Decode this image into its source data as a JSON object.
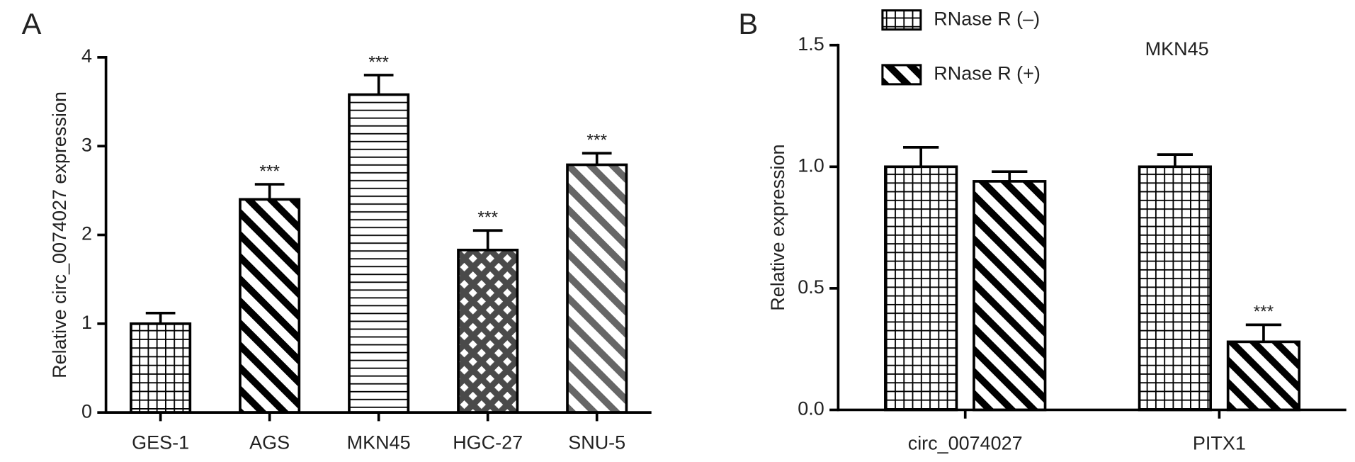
{
  "chart_data": [
    {
      "type": "bar",
      "panel": "A",
      "y_label": "Relative circ_0074027 expression",
      "categories": [
        "GES-1",
        "AGS",
        "MKN45",
        "HGC-27",
        "SNU-5"
      ],
      "values": [
        1.0,
        2.4,
        3.58,
        1.83,
        2.79
      ],
      "errors": [
        0.12,
        0.17,
        0.22,
        0.22,
        0.13
      ],
      "significance": [
        null,
        "***",
        "***",
        "***",
        "***"
      ],
      "colors": [
        "#000000",
        "#000000",
        "#000000",
        "#4a4a4a",
        "#666666"
      ],
      "hatches": [
        "grid",
        "back-diagonal",
        "horizontal",
        "cross",
        "back-diagonal"
      ],
      "ylim": [
        0,
        4
      ],
      "yticks": [
        0,
        1,
        2,
        3,
        4
      ]
    },
    {
      "type": "grouped_bar",
      "panel": "B",
      "title": "MKN45",
      "y_label": "Relative expression",
      "categories": [
        "circ_0074027",
        "PITX1"
      ],
      "series": [
        {
          "name": "RNase R (–)",
          "color": "#000000",
          "hatch": "grid",
          "values": [
            1.0,
            1.0
          ],
          "errors": [
            0.08,
            0.05
          ]
        },
        {
          "name": "RNase R (+)",
          "color": "#000000",
          "hatch": "back-diagonal",
          "values": [
            0.94,
            0.28
          ],
          "errors": [
            0.04,
            0.07
          ],
          "significance": [
            null,
            "***"
          ]
        }
      ],
      "ylim": [
        0,
        1.5
      ],
      "yticks": [
        {
          "value": 0,
          "label": "0.0"
        },
        0.5,
        {
          "value": 1,
          "label": "1.0"
        },
        {
          "value": 1.5,
          "label": "1.5"
        }
      ]
    }
  ]
}
